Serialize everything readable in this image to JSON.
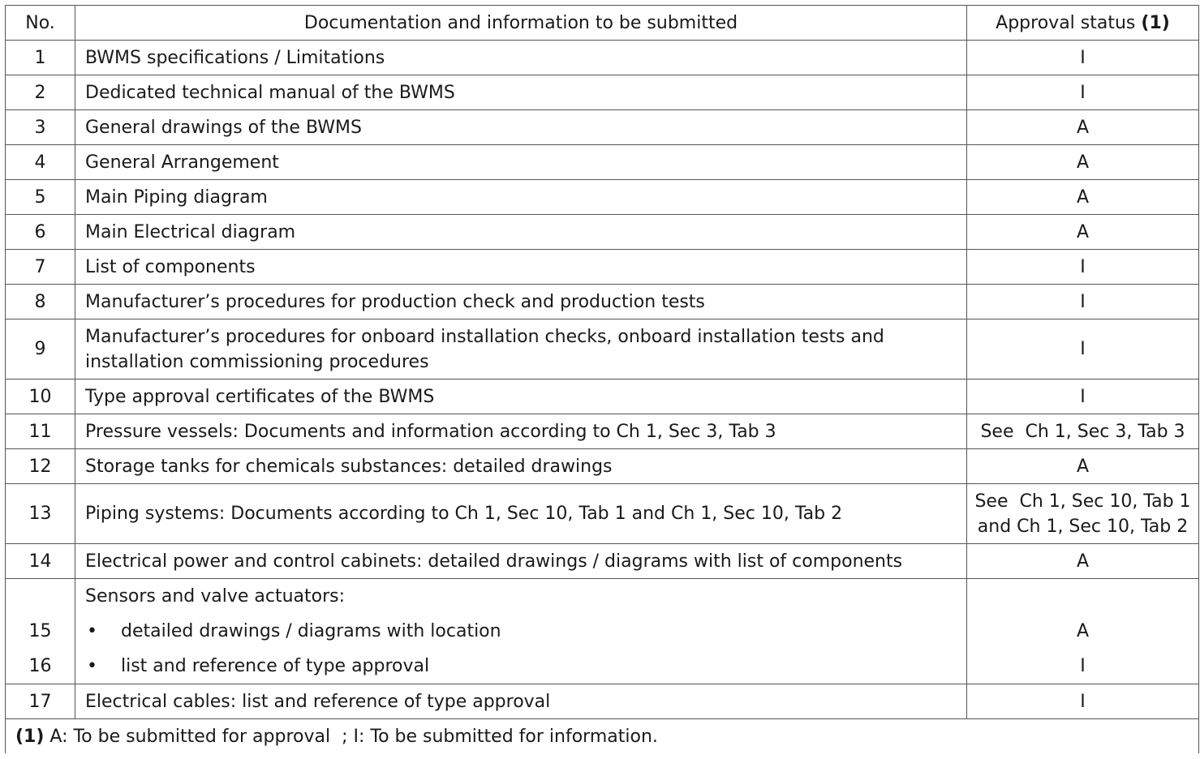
{
  "headers": {
    "no": "No.",
    "doc": "Documentation and information to be submitted",
    "status": "Approval status",
    "status_note": "(1)"
  },
  "rows": [
    {
      "no": "1",
      "doc": "BWMS specifications / Limitations",
      "status": "I"
    },
    {
      "no": "2",
      "doc": "Dedicated technical manual of the BWMS",
      "status": "I"
    },
    {
      "no": "3",
      "doc": "General drawings of the BWMS",
      "status": "A"
    },
    {
      "no": "4",
      "doc": "General Arrangement",
      "status": "A"
    },
    {
      "no": "5",
      "doc": "Main Piping diagram",
      "status": "A"
    },
    {
      "no": "6",
      "doc": "Main Electrical diagram",
      "status": "A"
    },
    {
      "no": "7",
      "doc": "List of components",
      "status": "I"
    },
    {
      "no": "8",
      "doc": "Manufacturer’s procedures for production check and production tests",
      "status": "I"
    },
    {
      "no": "9",
      "doc_line1": "Manufacturer’s procedures for onboard installation checks, onboard installation tests and",
      "doc_line2": "installation commissioning procedures",
      "status": "I"
    },
    {
      "no": "10",
      "doc": "Type approval certificates of the BWMS",
      "status": "I"
    },
    {
      "no": "11",
      "doc": "Pressure vessels: Documents and information according to Ch 1, Sec 3, Tab 3",
      "status": "See  Ch 1, Sec 3, Tab 3"
    },
    {
      "no": "12",
      "doc": "Storage tanks for chemicals substances: detailed drawings",
      "status": "A"
    },
    {
      "no": "13",
      "doc": "Piping systems: Documents according to Ch 1, Sec 10, Tab 1 and Ch 1, Sec 10, Tab 2",
      "status_line1": "See  Ch 1, Sec 10, Tab 1",
      "status_line2": "and Ch 1, Sec 10, Tab 2"
    },
    {
      "no": "14",
      "doc": "Electrical power and control cabinets: detailed drawings / diagrams with list of components",
      "status": "A"
    },
    {
      "heading": "Sensors and valve actuators:",
      "items": [
        {
          "no": "15",
          "bullet": "•",
          "doc": "detailed drawings / diagrams with location",
          "status": "A"
        },
        {
          "no": "16",
          "bullet": "•",
          "doc": "list and reference of type approval",
          "status": "I"
        }
      ]
    },
    {
      "no": "17",
      "doc": "Electrical cables: list and reference of type approval",
      "status": "I"
    }
  ],
  "footnote": {
    "marker": "(1)",
    "text": " A: To be submitted for approval  ; I: To be submitted for information."
  }
}
